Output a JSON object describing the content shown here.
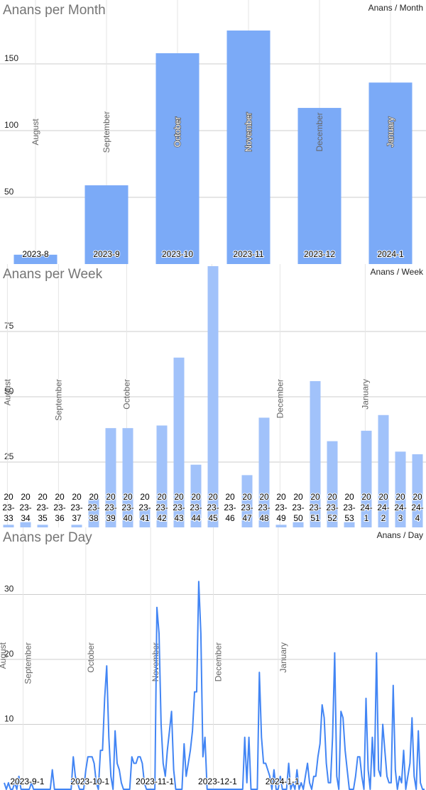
{
  "colors": {
    "bar_month": "#7baaf7",
    "bar_week": "#a1c2fa",
    "line_day": "#4285f4",
    "grid": "#cccccc",
    "title": "#757575",
    "label": "#222222",
    "month_label": "#666666"
  },
  "chart_data": [
    {
      "type": "bar",
      "title": "Anans per Month",
      "unit_label": "Anans / Month",
      "ylim": [
        0,
        175
      ],
      "yticks": [
        50,
        100,
        150
      ],
      "grid": true,
      "categories": [
        "2023-8",
        "2023-9",
        "2023-10",
        "2023-11",
        "2023-12",
        "2024-1"
      ],
      "month_names": [
        "August",
        "September",
        "October",
        "November",
        "December",
        "January"
      ],
      "values": [
        7,
        59,
        158,
        175,
        117,
        136
      ]
    },
    {
      "type": "bar",
      "title": "Anans per Week",
      "unit_label": "Anans / Week",
      "ylim": [
        0,
        100
      ],
      "yticks": [
        25,
        50,
        75
      ],
      "grid": true,
      "categories": [
        [
          "20",
          "23-",
          "33"
        ],
        [
          "20",
          "23-",
          "34"
        ],
        [
          "20",
          "23-",
          "35"
        ],
        [
          "20",
          "23-",
          "36"
        ],
        [
          "20",
          "23-",
          "37"
        ],
        [
          "20",
          "23-",
          "38"
        ],
        [
          "20",
          "23-",
          "39"
        ],
        [
          "20",
          "23-",
          "40"
        ],
        [
          "20",
          "23-",
          "41"
        ],
        [
          "20",
          "23-",
          "42"
        ],
        [
          "20",
          "23-",
          "43"
        ],
        [
          "20",
          "23-",
          "44"
        ],
        [
          "20",
          "23-",
          "45"
        ],
        [
          "20",
          "23-",
          "46"
        ],
        [
          "20",
          "23-",
          "47"
        ],
        [
          "20",
          "23-",
          "48"
        ],
        [
          "20",
          "23-",
          "49"
        ],
        [
          "20",
          "23-",
          "50"
        ],
        [
          "20",
          "23-",
          "51"
        ],
        [
          "20",
          "23-",
          "52"
        ],
        [
          "20",
          "23-",
          "53"
        ],
        [
          "20",
          "24-",
          "1"
        ],
        [
          "20",
          "24-",
          "2"
        ],
        [
          "20",
          "24-",
          "3"
        ],
        [
          "20",
          "24-",
          "4"
        ]
      ],
      "values": [
        1,
        2,
        1,
        0,
        1,
        11,
        38,
        38,
        7,
        39,
        65,
        24,
        100,
        0,
        20,
        42,
        1,
        2,
        56,
        33,
        2,
        37,
        43,
        29,
        28
      ],
      "month_markers": [
        {
          "name": "August",
          "week_index": -0.4
        },
        {
          "name": "September",
          "week_index": 2.6
        },
        {
          "name": "October",
          "week_index": 6.6
        },
        {
          "name": "November",
          "week_index": 11.6
        },
        {
          "name": "December",
          "week_index": 15.6
        },
        {
          "name": "January",
          "week_index": 20.6
        }
      ]
    },
    {
      "type": "line",
      "title": "Anans per Day",
      "unit_label": "Anans / Day",
      "x_start": "2023-08-21",
      "ylim": [
        0,
        33
      ],
      "yticks": [
        10,
        20,
        30
      ],
      "grid": true,
      "date_ticks": [
        "2023-9-1",
        "2023-10-1",
        "2023-11-1",
        "2023-12-1",
        "2024-1-1"
      ],
      "month_markers": [
        {
          "name": "August",
          "day_index": -3
        },
        {
          "name": "September",
          "day_index": 9
        },
        {
          "name": "October",
          "day_index": 39
        },
        {
          "name": "November",
          "day_index": 70
        },
        {
          "name": "December",
          "day_index": 100
        },
        {
          "name": "January",
          "day_index": 131
        }
      ],
      "values": [
        1,
        0,
        1,
        0,
        0,
        1,
        0,
        2,
        0,
        0,
        0,
        0,
        0,
        1,
        0,
        0,
        0,
        0,
        0,
        0,
        0,
        0,
        0,
        3,
        0,
        0,
        0,
        0,
        0,
        0,
        0,
        0,
        0,
        5,
        2,
        1,
        0,
        0,
        0,
        3,
        5,
        5,
        5,
        4,
        1,
        0,
        6,
        6,
        14,
        19,
        8,
        2,
        0,
        9,
        4,
        3,
        1,
        0,
        0,
        0,
        0,
        5,
        4,
        4,
        5,
        5,
        4,
        1,
        0,
        0,
        0,
        0,
        0,
        28,
        24,
        10,
        4,
        2,
        6,
        9,
        12,
        3,
        0,
        0,
        0,
        0,
        7,
        2,
        4,
        6,
        9,
        15,
        15,
        32,
        24,
        5,
        8,
        0,
        0,
        0,
        0,
        0,
        0,
        0,
        0,
        0,
        0,
        0,
        0,
        0,
        0,
        0,
        0,
        0,
        0,
        8,
        1,
        8,
        0,
        0,
        0,
        0,
        18,
        8,
        4,
        4,
        3,
        2,
        0,
        3,
        0,
        0,
        2,
        0,
        0,
        0,
        4,
        0,
        1,
        0,
        3,
        0,
        1,
        0,
        2,
        4,
        1,
        0,
        2,
        2,
        5,
        7,
        13,
        11,
        4,
        1,
        1,
        8,
        21,
        2,
        0,
        12,
        11,
        6,
        3,
        0,
        0,
        0,
        2,
        5,
        5,
        2,
        0,
        14,
        3,
        0,
        8,
        2,
        21,
        3,
        2,
        10,
        6,
        2,
        1,
        1,
        16,
        3,
        0,
        2,
        1,
        6,
        0,
        2,
        4,
        11,
        2,
        0,
        9,
        1,
        0,
        0
      ]
    }
  ]
}
